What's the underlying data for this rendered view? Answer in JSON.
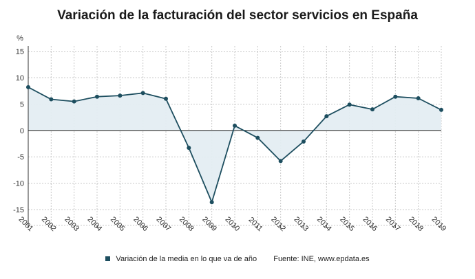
{
  "chart_data": {
    "type": "line",
    "title": "Variación de la facturación del sector servicios en España",
    "ylabel": "%",
    "xlabel": "",
    "ylim": [
      -18,
      16
    ],
    "yticks": [
      15,
      10,
      5,
      0,
      -5,
      -10,
      -15
    ],
    "grid": true,
    "area_fill": true,
    "x": [
      "2001",
      "2002",
      "2003",
      "2004",
      "2005",
      "2006",
      "2007",
      "2008",
      "2009",
      "2010",
      "2011",
      "2012",
      "2013",
      "2014",
      "2015",
      "2016",
      "2017",
      "2018",
      "2019"
    ],
    "series": [
      {
        "name": "Variación de la media en lo que va de año",
        "values": [
          8.2,
          5.9,
          5.5,
          6.4,
          6.6,
          7.1,
          6.0,
          -3.3,
          -13.6,
          0.9,
          -1.4,
          -5.8,
          -2.1,
          2.7,
          4.9,
          4.0,
          6.4,
          6.1,
          3.9
        ]
      }
    ],
    "legend_position": "bottom",
    "source": "Fuente: INE, www.epdata.es"
  },
  "colors": {
    "line": "#1d4e5f",
    "fill": "#e4edf2",
    "grid": "#c8c8c8",
    "axis": "#333333"
  }
}
